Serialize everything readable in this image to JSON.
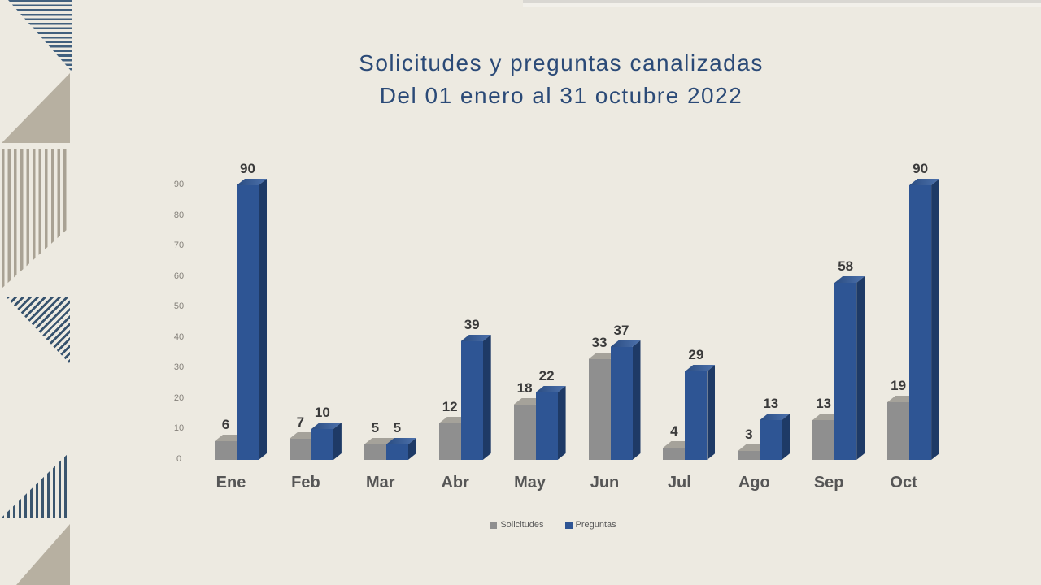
{
  "slide": {
    "title_line1": "Solicitudes y preguntas canalizadas",
    "title_line2": "Del 01 enero al 31 octubre 2022"
  },
  "chart_data": {
    "type": "bar",
    "style": "3d-clustered-column",
    "title": "Solicitudes y preguntas canalizadas",
    "subtitle": "Del 01 enero al 31 octubre 2022",
    "categories": [
      "Ene",
      "Feb",
      "Mar",
      "Abr",
      "May",
      "Jun",
      "Jul",
      "Ago",
      "Sep",
      "Oct"
    ],
    "series": [
      {
        "name": "Solicitudes",
        "color": "#8f8f8f",
        "values": [
          6,
          7,
          5,
          12,
          18,
          33,
          4,
          3,
          13,
          19
        ]
      },
      {
        "name": "Preguntas",
        "color": "#2e5594",
        "values": [
          90,
          10,
          5,
          39,
          22,
          37,
          29,
          13,
          58,
          90
        ]
      }
    ],
    "yticks": [
      0,
      10,
      20,
      30,
      40,
      50,
      60,
      70,
      80,
      90
    ],
    "ylim": [
      0,
      90
    ],
    "grid": false,
    "data_labels": true,
    "legend_position": "bottom"
  },
  "legend": {
    "items": [
      {
        "label": "Solicitudes",
        "color": "#8f8f8f"
      },
      {
        "label": "Preguntas",
        "color": "#2e5594"
      }
    ]
  },
  "colors": {
    "background": "#edeae1",
    "title_text": "#2b4a77",
    "axis_text": "#85817a",
    "category_text": "#565656",
    "value_text": "#3a3a3a",
    "decor_navy": "#3a556e",
    "decor_taupe": "#b7b0a1"
  }
}
